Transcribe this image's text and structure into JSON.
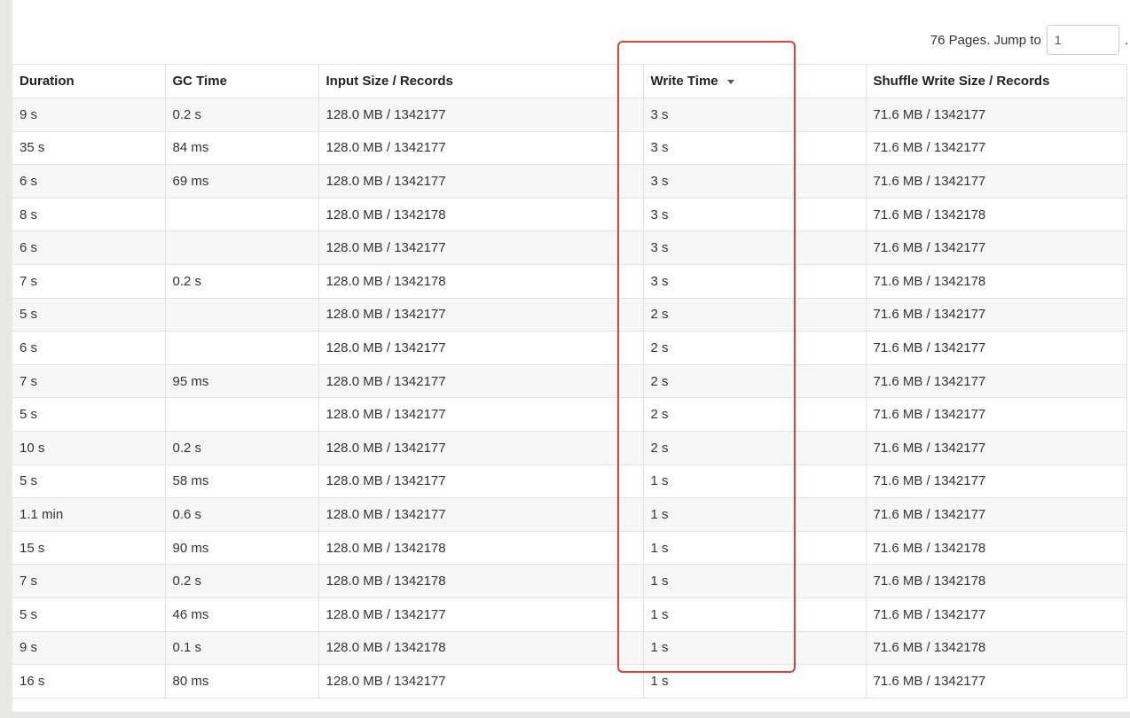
{
  "pager": {
    "pages_text": "76 Pages. Jump to",
    "jump_value": "1",
    "trailing": "."
  },
  "table": {
    "headers": {
      "duration": "Duration",
      "gc_time": "GC Time",
      "input": "Input Size / Records",
      "write_time": "Write Time",
      "shuffle": "Shuffle Write Size / Records"
    },
    "sorted_column": "write_time",
    "sort_direction": "descending",
    "rows": [
      {
        "duration": "9 s",
        "gc": "0.2 s",
        "input": "128.0 MB / 1342177",
        "write": "3 s",
        "shuffle": "71.6 MB / 1342177"
      },
      {
        "duration": "35 s",
        "gc": "84 ms",
        "input": "128.0 MB / 1342177",
        "write": "3 s",
        "shuffle": "71.6 MB / 1342177"
      },
      {
        "duration": "6 s",
        "gc": "69 ms",
        "input": "128.0 MB / 1342177",
        "write": "3 s",
        "shuffle": "71.6 MB / 1342177"
      },
      {
        "duration": "8 s",
        "gc": "",
        "input": "128.0 MB / 1342178",
        "write": "3 s",
        "shuffle": "71.6 MB / 1342178"
      },
      {
        "duration": "6 s",
        "gc": "",
        "input": "128.0 MB / 1342177",
        "write": "3 s",
        "shuffle": "71.6 MB / 1342177"
      },
      {
        "duration": "7 s",
        "gc": "0.2 s",
        "input": "128.0 MB / 1342178",
        "write": "3 s",
        "shuffle": "71.6 MB / 1342178"
      },
      {
        "duration": "5 s",
        "gc": "",
        "input": "128.0 MB / 1342177",
        "write": "2 s",
        "shuffle": "71.6 MB / 1342177"
      },
      {
        "duration": "6 s",
        "gc": "",
        "input": "128.0 MB / 1342177",
        "write": "2 s",
        "shuffle": "71.6 MB / 1342177"
      },
      {
        "duration": "7 s",
        "gc": "95 ms",
        "input": "128.0 MB / 1342177",
        "write": "2 s",
        "shuffle": "71.6 MB / 1342177"
      },
      {
        "duration": "5 s",
        "gc": "",
        "input": "128.0 MB / 1342177",
        "write": "2 s",
        "shuffle": "71.6 MB / 1342177"
      },
      {
        "duration": "10 s",
        "gc": "0.2 s",
        "input": "128.0 MB / 1342177",
        "write": "2 s",
        "shuffle": "71.6 MB / 1342177"
      },
      {
        "duration": "5 s",
        "gc": "58 ms",
        "input": "128.0 MB / 1342177",
        "write": "1 s",
        "shuffle": "71.6 MB / 1342177"
      },
      {
        "duration": "1.1 min",
        "gc": "0.6 s",
        "input": "128.0 MB / 1342177",
        "write": "1 s",
        "shuffle": "71.6 MB / 1342177"
      },
      {
        "duration": "15 s",
        "gc": "90 ms",
        "input": "128.0 MB / 1342178",
        "write": "1 s",
        "shuffle": "71.6 MB / 1342178"
      },
      {
        "duration": "7 s",
        "gc": "0.2 s",
        "input": "128.0 MB / 1342178",
        "write": "1 s",
        "shuffle": "71.6 MB / 1342178"
      },
      {
        "duration": "5 s",
        "gc": "46 ms",
        "input": "128.0 MB / 1342177",
        "write": "1 s",
        "shuffle": "71.6 MB / 1342177"
      },
      {
        "duration": "9 s",
        "gc": "0.1 s",
        "input": "128.0 MB / 1342178",
        "write": "1 s",
        "shuffle": "71.6 MB / 1342178"
      },
      {
        "duration": "16 s",
        "gc": "80 ms",
        "input": "128.0 MB / 1342177",
        "write": "1 s",
        "shuffle": "71.6 MB / 1342177"
      }
    ]
  },
  "annotation": {
    "highlight_color": "#d9443a",
    "highlighted_column": "write_time"
  },
  "colors": {
    "row_stripe": "#f7f7f7",
    "border": "#e3e3e3",
    "page_background": "#e8e8e6"
  }
}
